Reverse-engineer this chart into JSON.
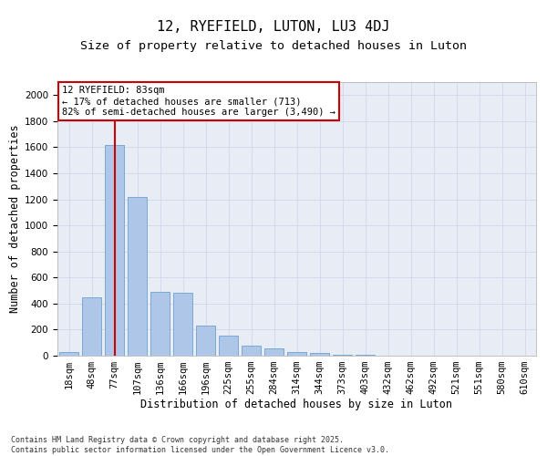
{
  "title1": "12, RYEFIELD, LUTON, LU3 4DJ",
  "title2": "Size of property relative to detached houses in Luton",
  "xlabel": "Distribution of detached houses by size in Luton",
  "ylabel": "Number of detached properties",
  "categories": [
    "18sqm",
    "48sqm",
    "77sqm",
    "107sqm",
    "136sqm",
    "166sqm",
    "196sqm",
    "225sqm",
    "255sqm",
    "284sqm",
    "314sqm",
    "344sqm",
    "373sqm",
    "403sqm",
    "432sqm",
    "462sqm",
    "492sqm",
    "521sqm",
    "551sqm",
    "580sqm",
    "610sqm"
  ],
  "values": [
    30,
    450,
    1620,
    1220,
    490,
    480,
    230,
    155,
    80,
    55,
    30,
    20,
    10,
    4,
    2,
    1,
    1,
    0,
    0,
    0,
    0
  ],
  "bar_color": "#aec6e8",
  "bar_edge_color": "#5a96c8",
  "highlight_bar_index": 2,
  "highlight_line_color": "#cc0000",
  "annotation_text": "12 RYEFIELD: 83sqm\n← 17% of detached houses are smaller (713)\n82% of semi-detached houses are larger (3,490) →",
  "annotation_box_color": "#cc0000",
  "ylim": [
    0,
    2100
  ],
  "yticks": [
    0,
    200,
    400,
    600,
    800,
    1000,
    1200,
    1400,
    1600,
    1800,
    2000
  ],
  "grid_color": "#d0d8e8",
  "background_color": "#e8edf5",
  "footer_text": "Contains HM Land Registry data © Crown copyright and database right 2025.\nContains public sector information licensed under the Open Government Licence v3.0.",
  "title1_fontsize": 11,
  "title2_fontsize": 9.5,
  "tick_fontsize": 7.5,
  "label_fontsize": 8.5,
  "footer_fontsize": 6.0
}
